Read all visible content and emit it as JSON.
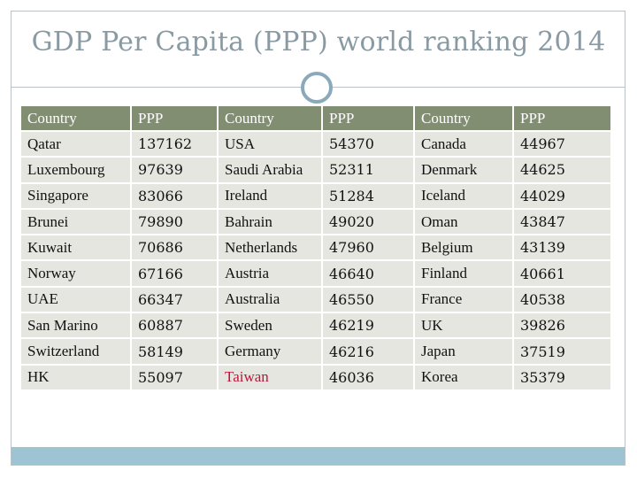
{
  "slide": {
    "title": "GDP Per Capita (PPP) world ranking 2014"
  },
  "table": {
    "headers": [
      "Country",
      "PPP",
      "Country",
      "PPP",
      "Country",
      "PPP"
    ],
    "rows": [
      [
        "Qatar",
        "137162",
        "USA",
        "54370",
        "Canada",
        "44967"
      ],
      [
        "Luxembourg",
        "97639",
        "Saudi Arabia",
        "52311",
        "Denmark",
        "44625"
      ],
      [
        "Singapore",
        "83066",
        "Ireland",
        "51284",
        "Iceland",
        "44029"
      ],
      [
        "Brunei",
        "79890",
        "Bahrain",
        "49020",
        "Oman",
        "43847"
      ],
      [
        "Kuwait",
        "70686",
        "Netherlands",
        "47960",
        "Belgium",
        "43139"
      ],
      [
        "Norway",
        "67166",
        "Austria",
        "46640",
        "Finland",
        "40661"
      ],
      [
        "UAE",
        "66347",
        "Australia",
        "46550",
        "France",
        "40538"
      ],
      [
        "San Marino",
        "60887",
        "Sweden",
        "46219",
        "UK",
        "39826"
      ],
      [
        "Switzerland",
        "58149",
        "Germany",
        "46216",
        "Japan",
        "37519"
      ],
      [
        "HK",
        "55097",
        "Taiwan",
        "46036",
        "Korea",
        "35379"
      ]
    ],
    "highlighted_cell": {
      "row": 9,
      "col": 2,
      "color": "#c0143c"
    }
  },
  "colors": {
    "header_bg": "#828e72",
    "cell_bg": "#e5e6df",
    "title": "#8a9aa3",
    "accent_bar": "#9ec4d4"
  }
}
